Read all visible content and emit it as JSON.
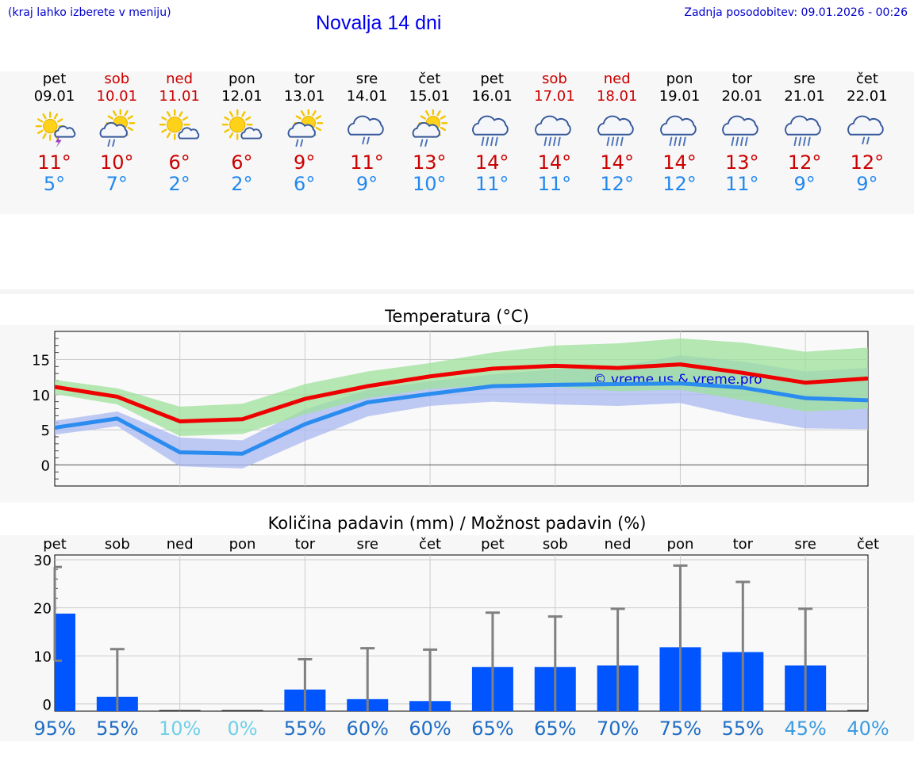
{
  "header": {
    "menu_hint": "(kraj lahko izberete v meniju)",
    "title": "Novalja 14 dni",
    "updated": "Zadnja posodobitev: 09.01.2026 - 00:26"
  },
  "days": [
    {
      "name": "pet",
      "date": "09.01",
      "weekend": false,
      "icon": "sun-cloud-thunder-icon",
      "max": "11°",
      "min": "5°"
    },
    {
      "name": "sob",
      "date": "10.01",
      "weekend": true,
      "icon": "sun-cloud-rain-icon",
      "max": "10°",
      "min": "7°"
    },
    {
      "name": "ned",
      "date": "11.01",
      "weekend": true,
      "icon": "sun-small-cloud-icon",
      "max": "6°",
      "min": "2°"
    },
    {
      "name": "pon",
      "date": "12.01",
      "weekend": false,
      "icon": "sun-small-cloud-icon",
      "max": "6°",
      "min": "2°"
    },
    {
      "name": "tor",
      "date": "13.01",
      "weekend": false,
      "icon": "sun-cloud-rain-icon",
      "max": "9°",
      "min": "6°"
    },
    {
      "name": "sre",
      "date": "14.01",
      "weekend": false,
      "icon": "cloud-rain-icon",
      "max": "11°",
      "min": "9°"
    },
    {
      "name": "čet",
      "date": "15.01",
      "weekend": false,
      "icon": "sun-cloud-rain-icon",
      "max": "13°",
      "min": "10°"
    },
    {
      "name": "pet",
      "date": "16.01",
      "weekend": false,
      "icon": "cloud-heavy-rain-icon",
      "max": "14°",
      "min": "11°"
    },
    {
      "name": "sob",
      "date": "17.01",
      "weekend": true,
      "icon": "cloud-heavy-rain-icon",
      "max": "14°",
      "min": "11°"
    },
    {
      "name": "ned",
      "date": "18.01",
      "weekend": true,
      "icon": "cloud-heavy-rain-icon",
      "max": "14°",
      "min": "12°"
    },
    {
      "name": "pon",
      "date": "19.01",
      "weekend": false,
      "icon": "cloud-heavy-rain-icon",
      "max": "14°",
      "min": "12°"
    },
    {
      "name": "tor",
      "date": "20.01",
      "weekend": false,
      "icon": "cloud-heavy-rain-icon",
      "max": "13°",
      "min": "11°"
    },
    {
      "name": "sre",
      "date": "21.01",
      "weekend": false,
      "icon": "cloud-heavy-rain-icon",
      "max": "12°",
      "min": "9°"
    },
    {
      "name": "čet",
      "date": "22.01",
      "weekend": false,
      "icon": "cloud-rain-icon",
      "max": "12°",
      "min": "9°"
    }
  ],
  "colors": {
    "weekday": "#000000",
    "weekend": "#cc0000",
    "max_line": "#ee0000",
    "min_line": "#2b8cf0",
    "max_band": "#9ee09a",
    "min_band": "#a8b8f0",
    "bar": "#0055ff",
    "errorbar": "#808080"
  },
  "chart_data": [
    {
      "type": "line",
      "title": "Temperatura (°C)",
      "watermark": "© vreme.us & vreme.pro",
      "ylim": [
        -3,
        19
      ],
      "yticks": [
        0,
        5,
        10,
        15
      ],
      "x": [
        0,
        1,
        2,
        3,
        4,
        5,
        6,
        7,
        8,
        9,
        10,
        11,
        12,
        13
      ],
      "series": [
        {
          "name": "max",
          "values": [
            11.1,
            9.7,
            6.2,
            6.5,
            9.4,
            11.2,
            12.6,
            13.7,
            14.1,
            13.8,
            14.3,
            13.1,
            11.7,
            12.3
          ]
        },
        {
          "name": "min",
          "values": [
            5.3,
            6.6,
            1.8,
            1.6,
            5.8,
            8.9,
            10.1,
            11.2,
            11.4,
            11.5,
            11.6,
            11.0,
            9.5,
            9.2
          ]
        },
        {
          "name": "max_band_upper",
          "values": [
            12.1,
            10.9,
            8.3,
            8.7,
            11.5,
            13.3,
            14.5,
            16.0,
            17.0,
            17.3,
            18.0,
            17.4,
            16.1,
            16.7
          ]
        },
        {
          "name": "max_band_lower",
          "values": [
            10.1,
            8.6,
            4.1,
            4.4,
            7.2,
            9.5,
            10.8,
            11.4,
            11.1,
            10.5,
            10.7,
            9.2,
            7.6,
            8.0
          ]
        },
        {
          "name": "min_band_upper",
          "values": [
            6.3,
            7.6,
            3.9,
            3.5,
            7.9,
            10.7,
            11.9,
            12.9,
            13.6,
            14.0,
            15.6,
            14.7,
            13.3,
            13.8
          ]
        },
        {
          "name": "min_band_lower",
          "values": [
            4.3,
            5.5,
            -0.2,
            -0.5,
            3.4,
            6.9,
            8.4,
            9.0,
            8.6,
            8.4,
            8.8,
            6.8,
            5.2,
            5.1
          ]
        }
      ]
    },
    {
      "type": "bar",
      "title": "Količina padavin (mm) / Možnost padavin (%)",
      "ylim": [
        -1.5,
        31
      ],
      "yticks": [
        0,
        10,
        20,
        30
      ],
      "categories": [
        "pet",
        "sob",
        "ned",
        "pon",
        "tor",
        "sre",
        "čet",
        "pet",
        "sob",
        "ned",
        "pon",
        "tor",
        "sre",
        "čet"
      ],
      "values": [
        18.8,
        1.5,
        0,
        0,
        3.0,
        1.0,
        0.6,
        7.7,
        7.7,
        8.0,
        11.8,
        10.8,
        8.0,
        0
      ],
      "error_low": [
        9,
        0,
        0,
        0,
        0,
        0,
        0,
        0,
        0,
        0,
        0,
        0,
        0,
        0
      ],
      "error_high": [
        28.5,
        11.4,
        0,
        0,
        9.3,
        11.6,
        11.3,
        19.0,
        18.2,
        19.8,
        28.8,
        25.4,
        19.8,
        0
      ],
      "probability": [
        "95%",
        "55%",
        "10%",
        "0%",
        "55%",
        "60%",
        "60%",
        "65%",
        "65%",
        "70%",
        "75%",
        "55%",
        "45%",
        "40%"
      ],
      "probability_colors": [
        "#1f6dc4",
        "#1f6dc4",
        "#6fd0e8",
        "#6fd0e8",
        "#1f6dc4",
        "#1f6dc4",
        "#1f6dc4",
        "#1f6dc4",
        "#1f6dc4",
        "#1f6dc4",
        "#1f6dc4",
        "#1f6dc4",
        "#3c9be0",
        "#3c9be0"
      ]
    }
  ]
}
